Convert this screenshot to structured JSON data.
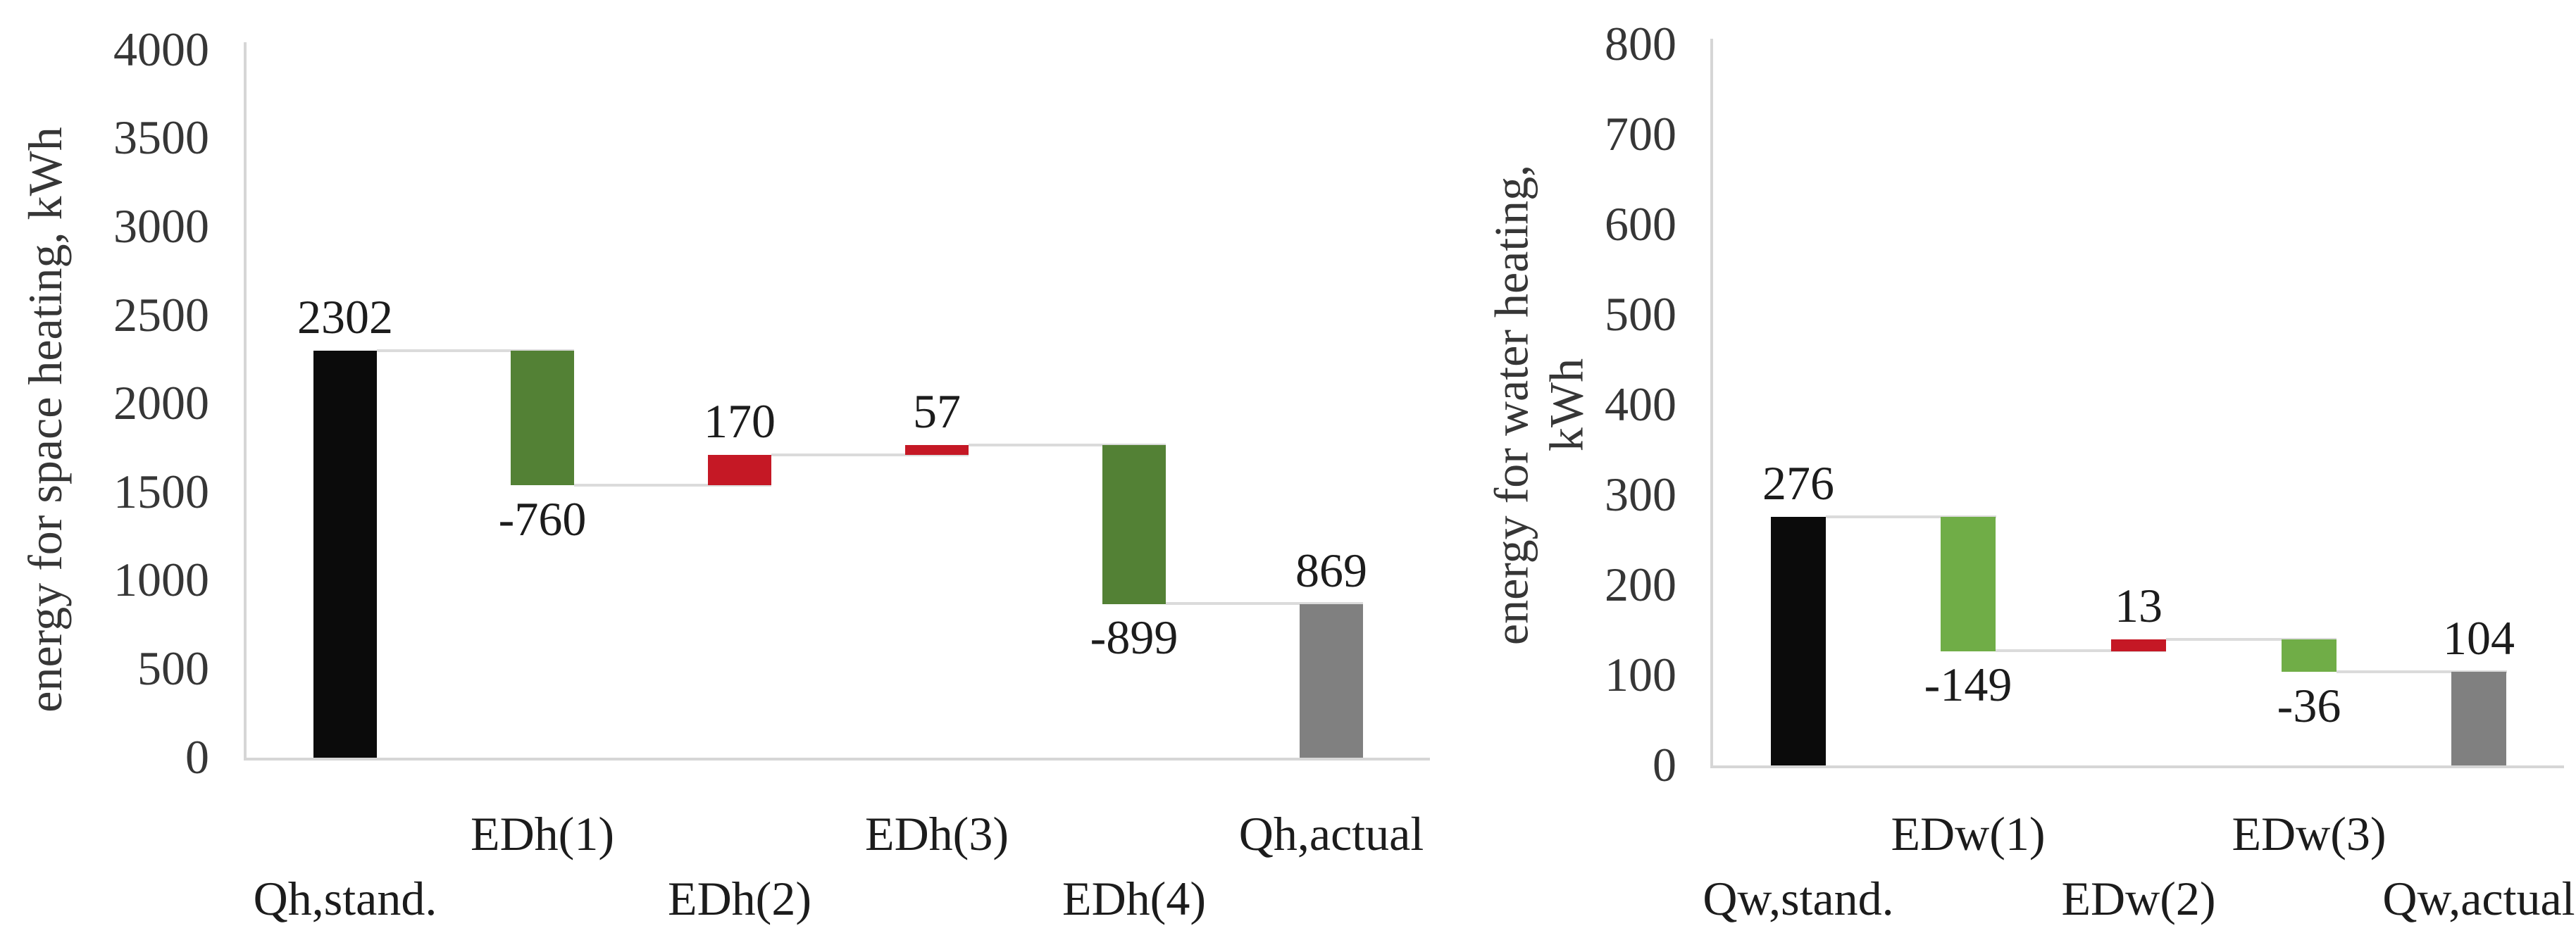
{
  "page": {
    "background": "#ffffff"
  },
  "colors": {
    "axis_line": "#d6d6d6",
    "connector_line": "#dbdbdb",
    "black_bar": "#0b0b0b",
    "dark_green_bar": "#538135",
    "light_green_bar": "#70ad47",
    "red_bar": "#c51825",
    "gray_bar": "#808080",
    "text": "#333333"
  },
  "chart_data": [
    {
      "type": "bar",
      "variant": "waterfall",
      "title": "",
      "xlabel": "",
      "ylabel": "energy for space heating, kWh",
      "ylabel_lines": [
        "energy for space heating, kWh"
      ],
      "ylim": [
        0,
        4000
      ],
      "ytick_step": 500,
      "yticks": [
        0,
        500,
        1000,
        1500,
        2000,
        2500,
        3000,
        3500,
        4000
      ],
      "grid": "off",
      "legend": "none",
      "categories": [
        "Qh,stand.",
        "EDh(1)",
        "EDh(2)",
        "EDh(3)",
        "EDh(4)",
        "Qh,actual"
      ],
      "category_rows": [
        2,
        1,
        2,
        1,
        2,
        1
      ],
      "bars": [
        {
          "label": "2302",
          "value": 2302,
          "kind": "total",
          "color": "#0b0b0b",
          "label_pos": "above"
        },
        {
          "label": "-760",
          "value": -760,
          "kind": "delta",
          "color": "#538135",
          "label_pos": "below"
        },
        {
          "label": "170",
          "value": 170,
          "kind": "delta",
          "color": "#c51825",
          "label_pos": "above"
        },
        {
          "label": "57",
          "value": 57,
          "kind": "delta",
          "color": "#c51825",
          "label_pos": "above"
        },
        {
          "label": "-899",
          "value": -899,
          "kind": "delta",
          "color": "#538135",
          "label_pos": "below"
        },
        {
          "label": "869",
          "value": 869,
          "kind": "total",
          "color": "#808080",
          "label_pos": "above"
        }
      ]
    },
    {
      "type": "bar",
      "variant": "waterfall",
      "title": "",
      "xlabel": "",
      "ylabel": "energy for water heating, kWh",
      "ylabel_lines": [
        "energy for water heating,",
        "kWh"
      ],
      "ylim": [
        0,
        800
      ],
      "ytick_step": 100,
      "yticks": [
        0,
        100,
        200,
        300,
        400,
        500,
        600,
        700,
        800
      ],
      "grid": "off",
      "legend": "none",
      "categories": [
        "Qw,stand.",
        "EDw(1)",
        "EDw(2)",
        "EDw(3)",
        "Qw,actual"
      ],
      "category_rows": [
        2,
        1,
        2,
        1,
        2
      ],
      "bars": [
        {
          "label": "276",
          "value": 276,
          "kind": "total",
          "color": "#0b0b0b",
          "label_pos": "above"
        },
        {
          "label": "-149",
          "value": -149,
          "kind": "delta",
          "color": "#70ad47",
          "label_pos": "below"
        },
        {
          "label": "13",
          "value": 13,
          "kind": "delta",
          "color": "#c51825",
          "label_pos": "above"
        },
        {
          "label": "-36",
          "value": -36,
          "kind": "delta",
          "color": "#70ad47",
          "label_pos": "below"
        },
        {
          "label": "104",
          "value": 104,
          "kind": "total",
          "color": "#808080",
          "label_pos": "above"
        }
      ]
    }
  ]
}
